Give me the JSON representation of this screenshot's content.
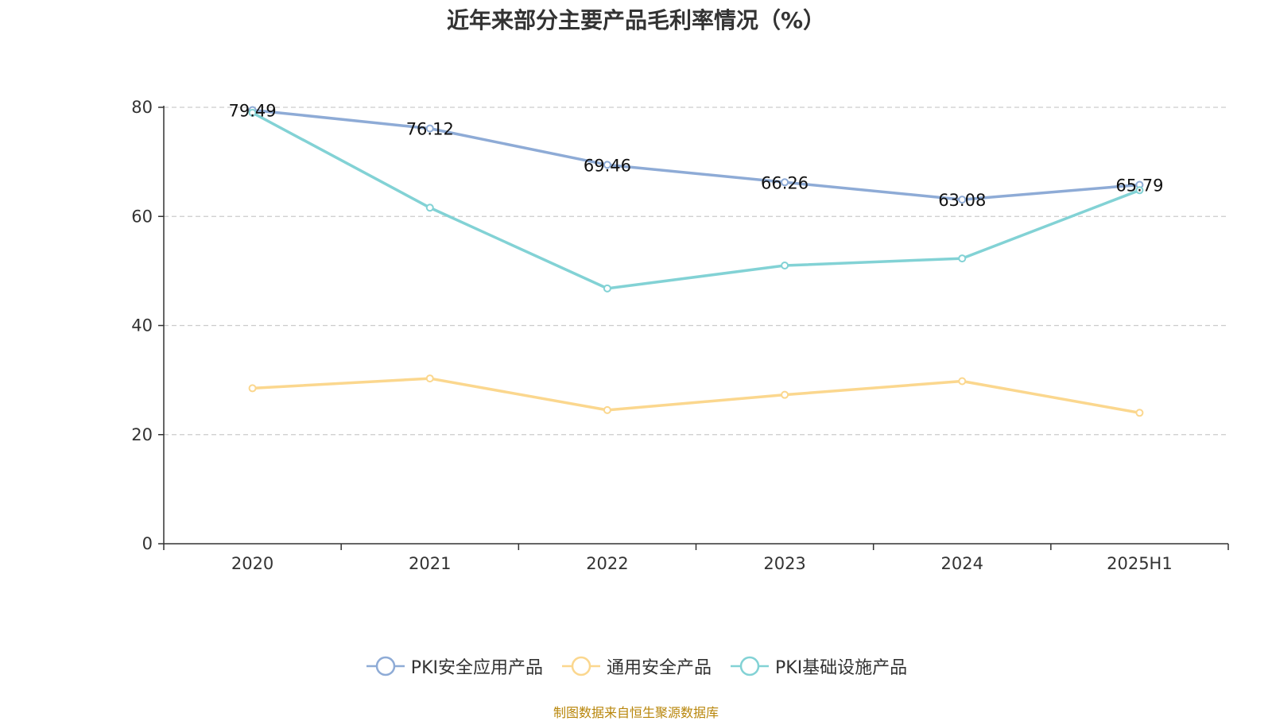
{
  "chart_data": {
    "type": "line",
    "title": "近年来部分主要产品毛利率情况（%）",
    "categories": [
      "2020",
      "2021",
      "2022",
      "2023",
      "2024",
      "2025H1"
    ],
    "ylim": [
      0,
      80
    ],
    "yticks": [
      0,
      20,
      40,
      60,
      80
    ],
    "grid": true,
    "legend_position": "bottom",
    "series": [
      {
        "name": "PKI安全应用产品",
        "color": "#8eabd6",
        "values": [
          79.49,
          76.12,
          69.46,
          66.26,
          63.08,
          65.79
        ],
        "labels": [
          "79.49",
          "76.12",
          "69.46",
          "66.26",
          "63.08",
          "65.79"
        ]
      },
      {
        "name": "通用安全产品",
        "color": "#fbd78e",
        "values": [
          28.5,
          30.3,
          24.5,
          27.3,
          29.8,
          24.0
        ]
      },
      {
        "name": "PKI基础设施产品",
        "color": "#82d2d5",
        "values": [
          79.0,
          61.6,
          46.8,
          51.0,
          52.3,
          64.8
        ]
      }
    ],
    "source": "制图数据来自恒生聚源数据库"
  }
}
